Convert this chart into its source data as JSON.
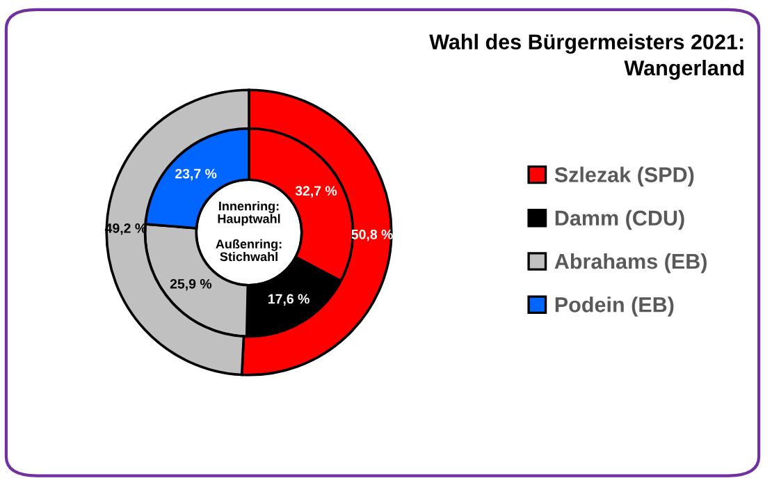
{
  "chart_data": {
    "type": "donut",
    "title": "Wahl des Bürgermeisters 2021:\nWangerland",
    "categories": [
      "Szlezak (SPD)",
      "Damm (CDU)",
      "Abrahams (EB)",
      "Podein (EB)"
    ],
    "colors": [
      "#ff0000",
      "#000000",
      "#c0c0c0",
      "#0066ff"
    ],
    "series": [
      {
        "values": [
          32.7,
          17.6,
          25.9,
          23.7
        ],
        "value_labels": [
          "32,7 %",
          "17,6 %",
          "25,9 %",
          "23,7 %"
        ]
      },
      {
        "values": [
          50.8,
          null,
          49.2,
          null
        ],
        "value_labels": [
          "50,8 %",
          null,
          "49,2 %",
          null
        ]
      }
    ],
    "annotations": [
      "Innenring:\nHauptwahl\n\nAußenring:\nStichwahl"
    ],
    "legend": "right"
  }
}
